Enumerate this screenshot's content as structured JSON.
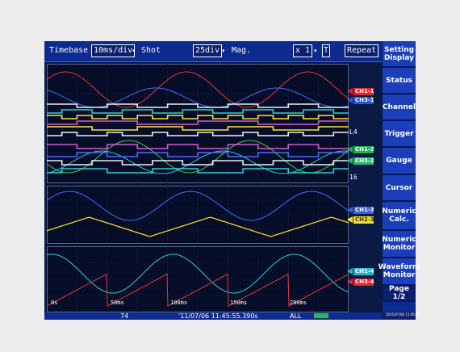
{
  "toolbar": {
    "timebase_label": "Timebase",
    "timebase_value": "10ms/div",
    "shot_label": "Shot",
    "shot_value": "25div",
    "mag_label": "Mag.",
    "mag_value": "x 1",
    "mode": "Repeat"
  },
  "side_buttons": [
    {
      "line1": "Setting",
      "line2": "Display"
    },
    {
      "line1": "Status",
      "line2": ""
    },
    {
      "line1": "Channel",
      "line2": ""
    },
    {
      "line1": "Trigger",
      "line2": ""
    },
    {
      "line1": "Gauge",
      "line2": ""
    },
    {
      "line1": "Cursor",
      "line2": ""
    },
    {
      "line1": "Numeric",
      "line2": "Calc."
    },
    {
      "line1": "Numeric",
      "line2": "Monitor"
    },
    {
      "line1": "Waveform",
      "line2": "Monitor"
    },
    {
      "line1": "Page 1/2",
      "line2": ""
    }
  ],
  "channel_labels": [
    {
      "text": "CH1-1",
      "color": "#e8232b"
    },
    {
      "text": "CH3-1",
      "color": "#2f55d6"
    },
    {
      "text": "CH1-2",
      "color": "#1fb34a"
    },
    {
      "text": "CH3-2",
      "color": "#22c06a"
    },
    {
      "text": "CH1-3",
      "color": "#3a5fd8"
    },
    {
      "text": "CH2-3",
      "color": "#f2e22b"
    },
    {
      "text": "CH1-4",
      "color": "#27b6c8"
    },
    {
      "text": "CH3-4",
      "color": "#e8232b"
    }
  ],
  "logic_labels": [
    "L4",
    "16"
  ],
  "time_labels": [
    "0s",
    "50ms",
    "100ms",
    "150ms",
    "200ms"
  ],
  "status_bar": {
    "value": "74",
    "datetime": "'11/07/06 11:45:55.390s",
    "scope": "ALL",
    "clock": "2011/07/06 11:45:55"
  },
  "colors": {
    "red": "#e23a3a",
    "yellow": "#ffe53a",
    "cyan": "#2fd0d0",
    "green": "#40d060",
    "blue": "#4070ff",
    "white": "#f0f0f0",
    "magenta": "#d060d0"
  }
}
